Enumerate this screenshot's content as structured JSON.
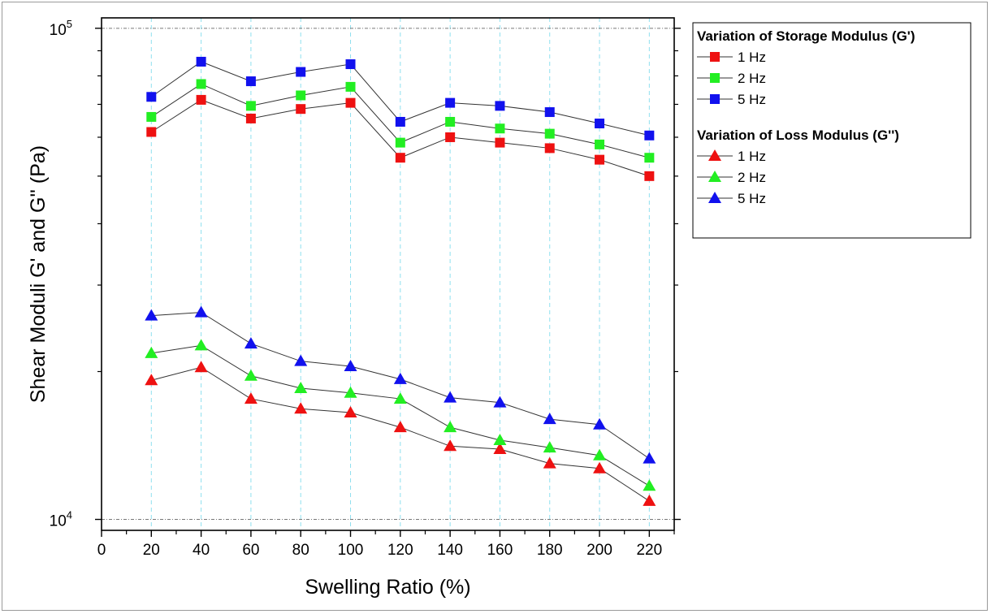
{
  "chart_data": {
    "type": "line",
    "xlabel": "Swelling Ratio (%)",
    "ylabel": "Shear Moduli G' and G'' (Pa)",
    "xlim": [
      0,
      230
    ],
    "ylim": [
      9500,
      105000
    ],
    "yscale": "log",
    "x_ticks": [
      "0",
      "20",
      "40",
      "60",
      "80",
      "100",
      "120",
      "140",
      "160",
      "180",
      "200",
      "220"
    ],
    "y_ticks": [
      {
        "base": "10",
        "exp": "4",
        "value": 10000
      },
      {
        "base": "10",
        "exp": "5",
        "value": 100000
      }
    ],
    "grid": "vertical dashed cyan at x ticks; horizontal dotted at decades",
    "legend": {
      "position": "right",
      "groups": [
        {
          "title": "Variation of Storage Modulus (G')",
          "marker": "square"
        },
        {
          "title": "Variation of Loss Modulus (G'')",
          "marker": "triangle"
        }
      ]
    },
    "x": [
      20,
      40,
      60,
      80,
      100,
      120,
      140,
      160,
      180,
      200,
      220
    ],
    "series": [
      {
        "name": "1 Hz",
        "group": 0,
        "marker": "square",
        "color": "#ee1111",
        "values": [
          61500,
          71500,
          65500,
          68500,
          70500,
          54500,
          60000,
          58500,
          57000,
          54000,
          50000
        ]
      },
      {
        "name": "2 Hz",
        "group": 0,
        "marker": "square",
        "color": "#22ee22",
        "values": [
          66000,
          77000,
          69500,
          73000,
          76000,
          58500,
          64500,
          62500,
          61000,
          58000,
          54500
        ]
      },
      {
        "name": "5 Hz",
        "group": 0,
        "marker": "square",
        "color": "#1111ee",
        "values": [
          72500,
          85500,
          78000,
          81500,
          84500,
          64500,
          70500,
          69500,
          67500,
          64000,
          60500
        ]
      },
      {
        "name": "1 Hz",
        "group": 1,
        "marker": "triangle",
        "color": "#ee1111",
        "values": [
          19200,
          20400,
          17600,
          16800,
          16500,
          15400,
          14100,
          13900,
          13000,
          12700,
          10900
        ]
      },
      {
        "name": "2 Hz",
        "group": 1,
        "marker": "triangle",
        "color": "#22ee22",
        "values": [
          21800,
          22600,
          19600,
          18500,
          18100,
          17600,
          15400,
          14500,
          14000,
          13500,
          11700
        ]
      },
      {
        "name": "5 Hz",
        "group": 1,
        "marker": "triangle",
        "color": "#1111ee",
        "values": [
          26000,
          26400,
          22800,
          21000,
          20500,
          19300,
          17700,
          17300,
          16000,
          15600,
          13300
        ]
      }
    ]
  }
}
